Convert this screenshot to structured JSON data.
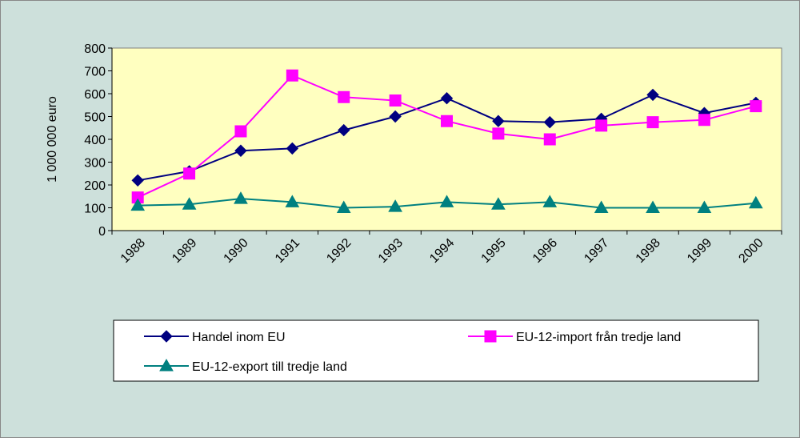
{
  "chart_data": {
    "type": "line",
    "ylabel": "1 000 000 euro",
    "categories": [
      "1988",
      "1989",
      "1990",
      "1991",
      "1992",
      "1993",
      "1994",
      "1995",
      "1996",
      "1997",
      "1998",
      "1999",
      "2000"
    ],
    "series": [
      {
        "name": "Handel inom EU",
        "color": "#000080",
        "marker": "diamond",
        "values": [
          220,
          260,
          350,
          360,
          440,
          500,
          580,
          480,
          475,
          490,
          595,
          515,
          560
        ]
      },
      {
        "name": "EU-12-import från tredje land",
        "color": "#ff00ff",
        "marker": "square",
        "values": [
          145,
          250,
          435,
          680,
          585,
          570,
          480,
          425,
          400,
          460,
          475,
          485,
          545
        ]
      },
      {
        "name": "EU-12-export till tredje land",
        "color": "#008080",
        "marker": "triangle",
        "values": [
          110,
          115,
          140,
          125,
          100,
          105,
          125,
          115,
          125,
          100,
          100,
          100,
          120
        ]
      }
    ],
    "ylim": [
      0,
      800
    ],
    "yticks": [
      0,
      100,
      200,
      300,
      400,
      500,
      600,
      700,
      800
    ],
    "grid": false,
    "legend": "bottom"
  }
}
